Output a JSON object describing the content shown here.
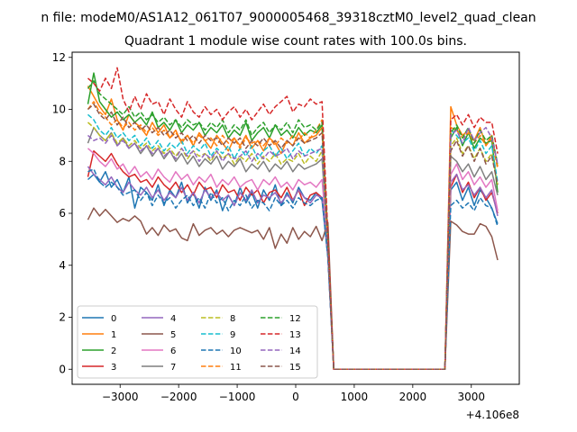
{
  "suptitle": "n file: modeM0/AS1A12_061T07_9000005468_39318cztM0_level2_quad_clean",
  "chart_data": {
    "type": "line",
    "title": "Quadrant 1 module wise count rates with 100.0s bins.",
    "xlabel": "",
    "ylabel": "",
    "x_offset_label": "+4.106e8",
    "xlim": [
      -3820,
      3820
    ],
    "ylim": [
      -0.58,
      12.2
    ],
    "xticks": [
      -3000,
      -2000,
      -1000,
      0,
      1000,
      2000,
      3000
    ],
    "xtick_labels": [
      "−3000",
      "−2000",
      "−1000",
      "0",
      "1000",
      "2000",
      "3000"
    ],
    "yticks": [
      0,
      2,
      4,
      6,
      8,
      10,
      12
    ],
    "ytick_labels": [
      "0",
      "2",
      "4",
      "6",
      "8",
      "10",
      "12"
    ],
    "grid": false,
    "legend": {
      "position": "lower-left",
      "columns": 4
    },
    "x_first": [
      -3550,
      -3450,
      -3350,
      -3250,
      -3150,
      -3050,
      -2950,
      -2850,
      -2750,
      -2650,
      -2550,
      -2450,
      -2350,
      -2250,
      -2150,
      -2050,
      -1950,
      -1850,
      -1750,
      -1650,
      -1550,
      -1450,
      -1350,
      -1250,
      -1150,
      -1050,
      -950,
      -850,
      -750,
      -650,
      -550,
      -450,
      -350,
      -250,
      -150,
      -50,
      50,
      150,
      250,
      350,
      450,
      550
    ],
    "x_gap": [
      650,
      2550
    ],
    "x_second": [
      2650,
      2750,
      2850,
      2950,
      3050,
      3150,
      3250,
      3350,
      3450
    ],
    "series": [
      {
        "name": "0",
        "color": "#1f77b4",
        "dash": false,
        "first": [
          7.3,
          7.5,
          7.2,
          7.6,
          7.0,
          7.3,
          6.8,
          7.4,
          6.2,
          7.0,
          6.8,
          6.5,
          7.1,
          6.3,
          6.9,
          6.6,
          7.2,
          6.4,
          6.8,
          6.2,
          7.0,
          6.5,
          6.9,
          6.1,
          6.7,
          6.3,
          7.0,
          6.4,
          6.8,
          6.2,
          6.9,
          6.5,
          7.1,
          6.3,
          6.8,
          6.4,
          7.0,
          6.6,
          6.5,
          6.8,
          6.5,
          4.3
        ],
        "second": [
          6.9,
          7.2,
          6.5,
          7.0,
          6.3,
          6.9,
          6.6,
          6.2,
          5.6
        ]
      },
      {
        "name": "1",
        "color": "#ff7f0e",
        "dash": false,
        "first": [
          10.9,
          10.5,
          10.1,
          9.8,
          10.4,
          9.6,
          9.2,
          9.8,
          9.5,
          9.3,
          9.0,
          9.5,
          9.1,
          9.4,
          8.9,
          9.2,
          8.7,
          9.0,
          8.6,
          9.1,
          8.8,
          8.5,
          9.0,
          8.7,
          8.4,
          8.9,
          8.6,
          9.0,
          8.5,
          8.8,
          8.4,
          8.9,
          8.7,
          8.3,
          8.8,
          8.6,
          9.1,
          8.7,
          8.9,
          9.0,
          9.3,
          4.8
        ],
        "second": [
          10.1,
          9.4,
          9.0,
          9.2,
          8.8,
          9.3,
          8.6,
          9.0,
          7.8
        ]
      },
      {
        "name": "2",
        "color": "#2ca02c",
        "dash": false,
        "first": [
          10.2,
          11.4,
          10.3,
          10.0,
          9.7,
          9.9,
          9.6,
          9.8,
          9.5,
          9.7,
          9.4,
          9.9,
          9.3,
          9.5,
          9.2,
          9.6,
          9.1,
          9.4,
          9.2,
          9.5,
          9.0,
          9.3,
          9.1,
          9.4,
          8.9,
          9.2,
          9.0,
          9.5,
          8.8,
          9.1,
          9.3,
          8.9,
          9.4,
          9.0,
          9.2,
          8.9,
          9.3,
          9.0,
          9.2,
          9.1,
          9.4,
          4.9
        ],
        "second": [
          8.9,
          9.3,
          8.6,
          9.1,
          8.5,
          8.9,
          8.7,
          8.8,
          6.8
        ]
      },
      {
        "name": "3",
        "color": "#d62728",
        "dash": false,
        "first": [
          7.4,
          8.4,
          8.2,
          8.0,
          8.3,
          7.9,
          7.6,
          7.4,
          7.5,
          7.2,
          7.3,
          7.0,
          7.4,
          7.1,
          6.9,
          7.2,
          6.8,
          7.1,
          6.7,
          7.2,
          6.9,
          7.0,
          6.6,
          7.1,
          6.8,
          6.9,
          6.5,
          7.0,
          6.7,
          6.9,
          6.4,
          6.8,
          6.9,
          6.6,
          7.0,
          6.5,
          6.9,
          6.3,
          6.7,
          6.8,
          6.6,
          4.4
        ],
        "second": [
          7.0,
          7.5,
          6.8,
          7.2,
          6.6,
          7.0,
          6.5,
          6.8,
          6.0
        ]
      },
      {
        "name": "4",
        "color": "#9467bd",
        "dash": false,
        "first": [
          7.8,
          7.5,
          7.3,
          7.1,
          7.4,
          7.0,
          6.8,
          7.2,
          6.9,
          6.7,
          7.0,
          6.6,
          6.9,
          6.5,
          6.8,
          6.6,
          7.0,
          6.5,
          6.8,
          6.4,
          6.9,
          6.6,
          6.8,
          6.5,
          6.7,
          6.3,
          6.8,
          6.5,
          6.9,
          6.4,
          6.7,
          6.6,
          6.8,
          6.4,
          6.7,
          6.5,
          6.9,
          6.6,
          6.4,
          6.7,
          6.6,
          4.4
        ],
        "second": [
          7.2,
          7.5,
          6.9,
          7.1,
          6.7,
          7.0,
          6.6,
          6.9,
          5.9
        ]
      },
      {
        "name": "5",
        "color": "#8c564b",
        "dash": false,
        "first": [
          5.75,
          6.2,
          5.9,
          6.15,
          5.9,
          5.65,
          5.8,
          5.7,
          5.9,
          5.7,
          5.2,
          5.45,
          5.15,
          5.55,
          5.3,
          5.4,
          5.05,
          4.95,
          5.6,
          5.15,
          5.35,
          5.45,
          5.2,
          5.35,
          5.1,
          5.35,
          5.45,
          5.35,
          5.25,
          5.35,
          5.0,
          5.45,
          4.65,
          5.2,
          4.85,
          5.45,
          5.0,
          5.3,
          5.1,
          5.5,
          4.95,
          5.65
        ],
        "second": [
          5.7,
          5.55,
          5.3,
          5.2,
          5.2,
          5.6,
          5.5,
          5.1,
          4.2
        ]
      },
      {
        "name": "6",
        "color": "#e377c2",
        "dash": false,
        "first": [
          8.5,
          8.3,
          8.0,
          7.8,
          8.1,
          7.7,
          7.9,
          7.5,
          7.8,
          7.4,
          7.6,
          7.3,
          7.7,
          7.4,
          7.2,
          7.6,
          7.3,
          7.5,
          7.1,
          7.4,
          7.2,
          7.5,
          7.0,
          7.3,
          7.1,
          7.4,
          7.0,
          7.2,
          7.3,
          6.9,
          7.3,
          7.1,
          7.4,
          7.0,
          7.2,
          6.9,
          7.3,
          7.1,
          7.2,
          7.0,
          7.3,
          4.6
        ],
        "second": [
          7.5,
          7.9,
          7.3,
          7.6,
          7.1,
          7.4,
          7.0,
          7.3,
          6.1
        ]
      },
      {
        "name": "7",
        "color": "#7f7f7f",
        "dash": false,
        "first": [
          8.7,
          9.3,
          9.0,
          8.8,
          9.1,
          8.6,
          8.9,
          8.5,
          8.7,
          8.3,
          8.6,
          8.2,
          8.5,
          8.1,
          8.4,
          8.0,
          8.3,
          7.9,
          8.2,
          7.8,
          8.1,
          7.9,
          8.2,
          7.7,
          8.0,
          7.8,
          8.1,
          7.6,
          7.9,
          7.7,
          8.0,
          7.6,
          7.9,
          7.7,
          8.0,
          7.6,
          7.9,
          7.7,
          7.8,
          7.9,
          8.1,
          4.7
        ],
        "second": [
          8.2,
          8.0,
          7.6,
          7.9,
          7.4,
          7.8,
          7.3,
          7.6,
          6.7
        ]
      },
      {
        "name": "8",
        "color": "#bcbd22",
        "dash": true,
        "first": [
          9.5,
          9.3,
          9.0,
          8.8,
          9.1,
          8.7,
          8.9,
          8.6,
          8.8,
          8.5,
          8.7,
          8.4,
          8.6,
          8.3,
          8.5,
          8.2,
          8.5,
          8.1,
          8.4,
          8.2,
          8.3,
          8.0,
          8.4,
          8.1,
          8.3,
          7.9,
          8.2,
          8.0,
          8.3,
          7.9,
          8.2,
          8.0,
          8.3,
          7.9,
          8.1,
          8.0,
          8.3,
          7.9,
          8.2,
          8.0,
          8.4,
          4.6
        ],
        "second": [
          8.6,
          8.9,
          8.3,
          8.6,
          8.1,
          8.5,
          8.0,
          8.3,
          7.1
        ]
      },
      {
        "name": "9",
        "color": "#17becf",
        "dash": true,
        "first": [
          9.8,
          9.6,
          9.2,
          9.0,
          9.3,
          8.9,
          9.1,
          8.8,
          9.0,
          8.6,
          8.9,
          8.5,
          8.8,
          8.4,
          8.7,
          8.5,
          8.8,
          8.3,
          8.6,
          8.4,
          8.7,
          8.2,
          8.5,
          8.3,
          8.6,
          8.1,
          8.5,
          8.2,
          8.6,
          8.1,
          8.4,
          8.6,
          8.2,
          8.5,
          8.1,
          8.4,
          8.7,
          8.2,
          8.5,
          8.3,
          8.6,
          4.7
        ],
        "second": [
          9.2,
          9.0,
          8.7,
          8.9,
          8.4,
          8.8,
          8.3,
          8.6,
          7.2
        ]
      },
      {
        "name": "10",
        "color": "#1f77b4",
        "dash": true,
        "first": [
          7.6,
          7.7,
          7.2,
          7.0,
          7.2,
          7.0,
          6.7,
          6.8,
          6.9,
          6.5,
          6.8,
          6.3,
          6.7,
          6.4,
          6.6,
          6.2,
          6.5,
          6.7,
          6.3,
          6.6,
          6.2,
          6.8,
          6.4,
          6.6,
          6.1,
          6.5,
          6.3,
          6.7,
          6.2,
          6.5,
          6.4,
          6.1,
          6.6,
          6.3,
          6.5,
          6.2,
          6.6,
          6.4,
          6.3,
          6.5,
          6.6,
          4.3
        ],
        "second": [
          6.3,
          6.5,
          6.2,
          6.4,
          6.1,
          6.6,
          6.3,
          6.2,
          5.5
        ]
      },
      {
        "name": "11",
        "color": "#ff7f0e",
        "dash": true,
        "first": [
          10.0,
          10.3,
          9.9,
          9.7,
          9.4,
          9.6,
          9.3,
          9.5,
          9.2,
          9.4,
          9.1,
          9.3,
          9.0,
          9.2,
          8.9,
          9.1,
          8.8,
          9.0,
          8.7,
          9.0,
          8.8,
          8.9,
          8.6,
          9.0,
          8.7,
          8.9,
          8.5,
          8.9,
          8.7,
          8.8,
          8.6,
          8.9,
          8.6,
          8.9,
          8.7,
          9.0,
          8.8,
          9.1,
          8.9,
          9.2,
          9.6,
          4.9
        ],
        "second": [
          9.3,
          9.2,
          8.9,
          9.1,
          8.7,
          9.0,
          8.6,
          8.9,
          7.7
        ]
      },
      {
        "name": "12",
        "color": "#2ca02c",
        "dash": true,
        "first": [
          10.8,
          11.1,
          10.6,
          10.4,
          10.2,
          10.0,
          9.8,
          10.1,
          9.7,
          9.9,
          9.6,
          9.8,
          9.5,
          9.7,
          9.4,
          9.6,
          9.3,
          9.6,
          9.4,
          9.5,
          9.2,
          9.5,
          9.3,
          9.6,
          9.1,
          9.4,
          9.2,
          9.6,
          9.0,
          9.3,
          9.5,
          9.1,
          9.4,
          9.2,
          9.5,
          9.1,
          9.6,
          9.3,
          9.4,
          9.2,
          9.5,
          5.0
        ],
        "second": [
          9.1,
          9.4,
          8.9,
          9.3,
          8.7,
          9.2,
          8.8,
          9.0,
          7.9
        ]
      },
      {
        "name": "13",
        "color": "#d62728",
        "dash": true,
        "first": [
          11.2,
          11.0,
          10.7,
          11.2,
          10.8,
          11.6,
          10.4,
          9.9,
          10.5,
          10.0,
          10.6,
          10.2,
          10.3,
          9.8,
          10.4,
          10.0,
          9.7,
          10.3,
          9.9,
          9.7,
          10.1,
          9.8,
          10.0,
          9.6,
          9.9,
          10.1,
          9.7,
          10.0,
          9.6,
          9.9,
          10.2,
          9.8,
          10.1,
          10.3,
          10.5,
          9.9,
          10.2,
          10.1,
          10.4,
          10.2,
          10.3,
          5.2
        ],
        "second": [
          9.6,
          9.8,
          9.4,
          9.8,
          9.3,
          9.7,
          9.5,
          9.5,
          8.3
        ]
      },
      {
        "name": "14",
        "color": "#9467bd",
        "dash": true,
        "first": [
          9.0,
          8.8,
          8.9,
          8.7,
          9.0,
          8.6,
          8.8,
          8.5,
          8.7,
          8.4,
          8.6,
          8.3,
          8.5,
          8.2,
          8.4,
          8.1,
          8.5,
          8.2,
          8.4,
          8.0,
          8.3,
          8.1,
          8.4,
          8.0,
          8.3,
          8.1,
          8.2,
          8.4,
          8.0,
          8.3,
          8.1,
          8.4,
          8.2,
          8.3,
          8.5,
          8.1,
          8.4,
          8.2,
          8.3,
          8.4,
          8.5,
          4.6
        ],
        "second": [
          9.0,
          9.2,
          8.7,
          9.3,
          8.8,
          9.1,
          9.3,
          8.9,
          7.9
        ]
      },
      {
        "name": "15",
        "color": "#8c564b",
        "dash": true,
        "first": [
          10.0,
          10.2,
          9.8,
          9.6,
          9.9,
          9.4,
          9.7,
          9.3,
          9.5,
          9.2,
          9.4,
          9.1,
          9.3,
          9.0,
          9.2,
          8.9,
          9.1,
          8.8,
          9.0,
          8.7,
          9.0,
          8.8,
          8.9,
          8.6,
          8.9,
          8.7,
          8.9,
          8.5,
          8.8,
          8.6,
          8.9,
          8.6,
          8.8,
          8.5,
          8.8,
          8.6,
          8.9,
          8.7,
          8.8,
          8.9,
          9.1,
          4.8
        ],
        "second": [
          8.4,
          8.8,
          8.2,
          8.6,
          8.0,
          8.5,
          7.9,
          8.2,
          7.1
        ]
      }
    ]
  }
}
